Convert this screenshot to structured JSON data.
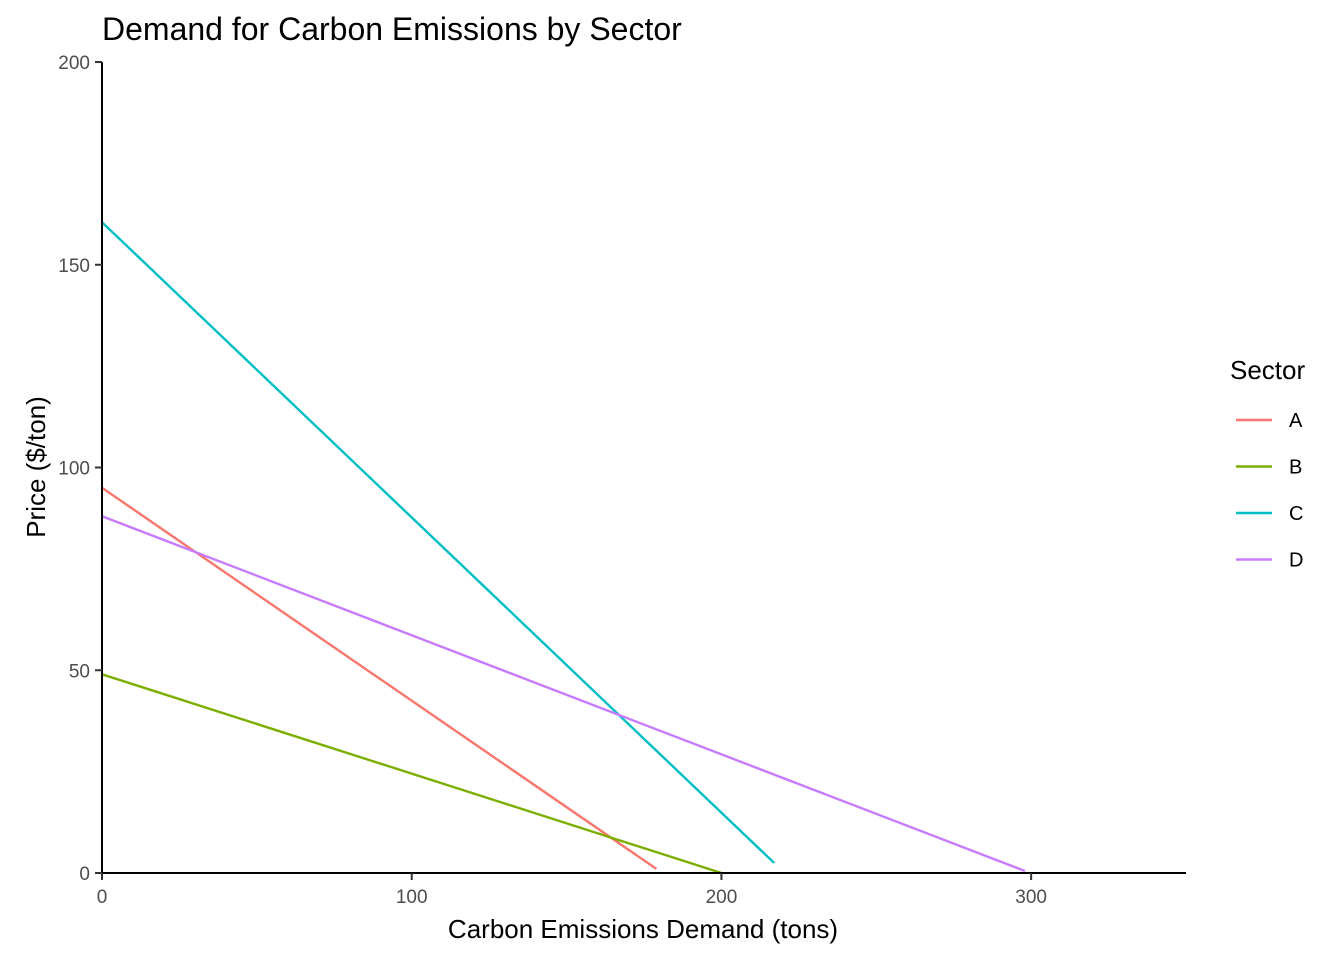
{
  "chart_data": {
    "type": "line",
    "title": "Demand for Carbon Emissions by Sector",
    "xlabel": "Carbon Emissions Demand (tons)",
    "ylabel": "Price ($/ton)",
    "xlim": [
      0,
      350
    ],
    "ylim": [
      0,
      200
    ],
    "x_ticks": [
      0,
      100,
      200,
      300
    ],
    "y_ticks": [
      0,
      50,
      100,
      150,
      200
    ],
    "grid": false,
    "legend": {
      "title": "Sector",
      "position": "right"
    },
    "series": [
      {
        "name": "A",
        "color": "#F8766D",
        "points": [
          [
            0,
            95
          ],
          [
            179,
            1
          ]
        ]
      },
      {
        "name": "B",
        "color": "#7CAE00",
        "points": [
          [
            0,
            49
          ],
          [
            200,
            0
          ]
        ]
      },
      {
        "name": "C",
        "color": "#00BFC4",
        "points": [
          [
            0,
            160.5
          ],
          [
            217,
            2.5
          ]
        ]
      },
      {
        "name": "D",
        "color": "#C77CFF",
        "points": [
          [
            0,
            88
          ],
          [
            298,
            0.5
          ]
        ]
      }
    ]
  }
}
